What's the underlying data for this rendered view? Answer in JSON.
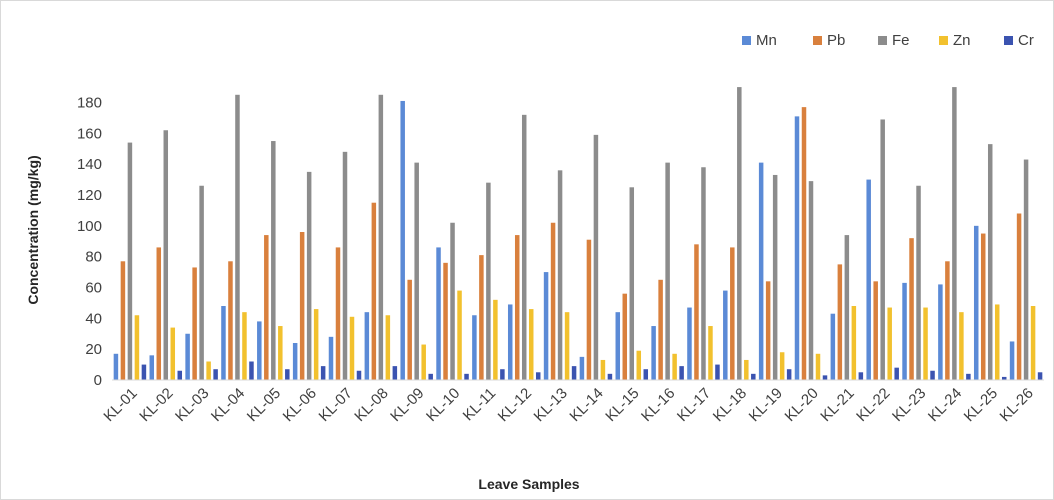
{
  "chart_data": {
    "type": "bar",
    "title": "",
    "xlabel": "Leave Samples",
    "ylabel": "Concentration (mg/kg)",
    "ylim": [
      0,
      180
    ],
    "yticks": [
      0,
      20,
      40,
      60,
      80,
      100,
      120,
      140,
      160,
      180
    ],
    "grid": false,
    "legend_position": "top-right",
    "categories": [
      "KL-01",
      "KL-02",
      "KL-03",
      "KL-04",
      "KL-05",
      "KL-06",
      "KL-07",
      "KL-08",
      "KL-09",
      "KL-10",
      "KL-11",
      "KL-12",
      "KL-13",
      "KL-14",
      "KL-15",
      "KL-16",
      "KL-17",
      "KL-18",
      "KL-19",
      "KL-20",
      "KL-21",
      "KL-22",
      "KL-23",
      "KL-24",
      "KL-25",
      "KL-26"
    ],
    "series": [
      {
        "name": "Mn",
        "color": "#5b8ad6",
        "values": [
          17,
          16,
          30,
          48,
          38,
          24,
          28,
          44,
          181,
          86,
          42,
          49,
          70,
          15,
          44,
          35,
          47,
          58,
          141,
          171,
          43,
          130,
          63,
          62,
          100,
          25
        ]
      },
      {
        "name": "Pb",
        "color": "#d9803d",
        "values": [
          77,
          86,
          73,
          77,
          94,
          96,
          86,
          115,
          65,
          76,
          81,
          94,
          102,
          91,
          56,
          65,
          88,
          86,
          64,
          177,
          75,
          64,
          92,
          77,
          95,
          108
        ]
      },
      {
        "name": "Fe",
        "color": "#8c8c8c",
        "values": [
          154,
          162,
          126,
          185,
          155,
          135,
          148,
          185,
          141,
          102,
          128,
          172,
          136,
          159,
          125,
          141,
          138,
          190,
          133,
          129,
          94,
          169,
          126,
          190,
          153,
          143
        ]
      },
      {
        "name": "Zn",
        "color": "#f2c12e",
        "values": [
          42,
          34,
          12,
          44,
          35,
          46,
          41,
          42,
          23,
          58,
          52,
          46,
          44,
          13,
          19,
          17,
          35,
          13,
          18,
          17,
          48,
          47,
          47,
          44,
          49,
          48
        ]
      },
      {
        "name": "Cr",
        "color": "#3b53b0",
        "values": [
          10,
          6,
          7,
          12,
          7,
          9,
          6,
          9,
          4,
          4,
          7,
          5,
          9,
          4,
          7,
          9,
          10,
          4,
          7,
          3,
          5,
          8,
          6,
          4,
          2,
          5
        ]
      }
    ]
  }
}
